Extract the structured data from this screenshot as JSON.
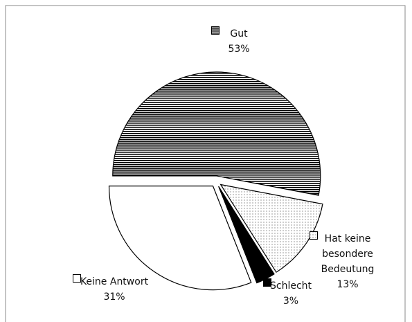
{
  "chart_data": {
    "type": "pie",
    "categories": [
      "Gut",
      "Hat keine besondere Bedeutung",
      "Schlecht",
      "Keine Antwort"
    ],
    "values": [
      53,
      13,
      3,
      31
    ],
    "value_labels": [
      "53%",
      "13%",
      "3%",
      "31%"
    ],
    "patterns": [
      "horizontal-lines",
      "dots",
      "solid",
      "none"
    ],
    "stroke": "#000"
  }
}
